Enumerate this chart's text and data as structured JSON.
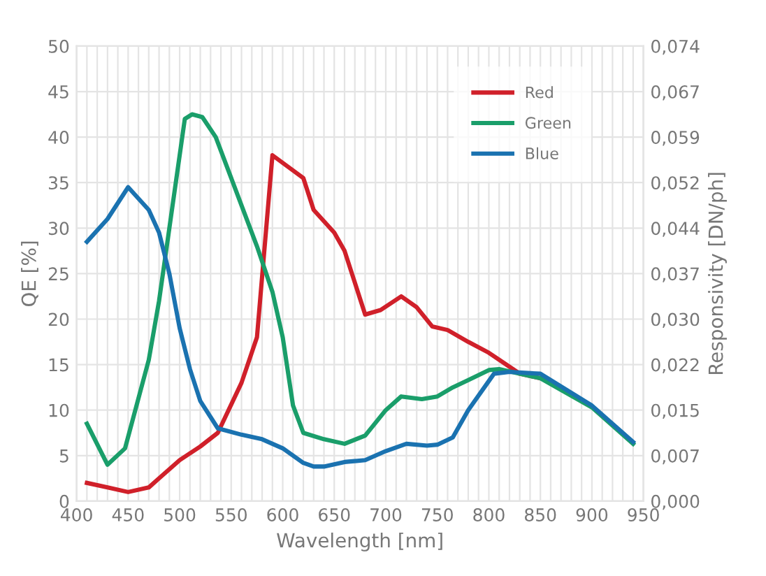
{
  "chart_data": {
    "type": "line",
    "xlabel": "Wavelength [nm]",
    "ylabel": "QE [%]",
    "y2label": "Responsivity [DN/ph]",
    "xlim": [
      400,
      950
    ],
    "xticks": [
      400,
      {
        "value": 410,
        "label": null
      },
      {
        "value": 420,
        "label": null
      },
      {
        "value": 430,
        "label": null
      },
      {
        "value": 440,
        "label": null
      },
      450,
      {
        "value": 460,
        "label": null
      },
      {
        "value": 470,
        "label": null
      },
      {
        "value": 480,
        "label": null
      },
      {
        "value": 490,
        "label": null
      },
      500,
      {
        "value": 510,
        "label": null
      },
      {
        "value": 520,
        "label": null
      },
      {
        "value": 530,
        "label": null
      },
      {
        "value": 540,
        "label": null
      },
      550,
      {
        "value": 560,
        "label": null
      },
      {
        "value": 570,
        "label": null
      },
      {
        "value": 580,
        "label": null
      },
      {
        "value": 590,
        "label": null
      },
      600,
      {
        "value": 610,
        "label": null
      },
      {
        "value": 620,
        "label": null
      },
      {
        "value": 630,
        "label": null
      },
      {
        "value": 640,
        "label": null
      },
      650,
      {
        "value": 660,
        "label": null
      },
      {
        "value": 670,
        "label": null
      },
      {
        "value": 680,
        "label": null
      },
      {
        "value": 690,
        "label": null
      },
      700,
      {
        "value": 710,
        "label": null
      },
      {
        "value": 720,
        "label": null
      },
      {
        "value": 730,
        "label": null
      },
      {
        "value": 740,
        "label": null
      },
      750,
      {
        "value": 760,
        "label": null
      },
      {
        "value": 770,
        "label": null
      },
      {
        "value": 780,
        "label": null
      },
      {
        "value": 790,
        "label": null
      },
      800,
      {
        "value": 810,
        "label": null
      },
      {
        "value": 820,
        "label": null
      },
      {
        "value": 830,
        "label": null
      },
      {
        "value": 840,
        "label": null
      },
      850,
      {
        "value": 860,
        "label": null
      },
      {
        "value": 870,
        "label": null
      },
      {
        "value": 880,
        "label": null
      },
      {
        "value": 890,
        "label": null
      },
      900,
      {
        "value": 910,
        "label": null
      },
      {
        "value": 920,
        "label": null
      },
      {
        "value": 930,
        "label": null
      },
      {
        "value": 940,
        "label": null
      },
      950
    ],
    "ylim": [
      0,
      50
    ],
    "yticks": [
      0,
      5,
      10,
      15,
      20,
      25,
      30,
      35,
      40,
      45,
      50
    ],
    "y2lim": [
      0,
      0.074
    ],
    "y2ticks": [
      {
        "value": 0,
        "label": "0,000"
      },
      {
        "value": 0.0074,
        "label": "0,007"
      },
      {
        "value": 0.0148,
        "label": "0,015"
      },
      {
        "value": 0.0222,
        "label": "0,022"
      },
      {
        "value": 0.0296,
        "label": "0,030"
      },
      {
        "value": 0.037,
        "label": "0,037"
      },
      {
        "value": 0.0444,
        "label": "0,044"
      },
      {
        "value": 0.0518,
        "label": "0,052"
      },
      {
        "value": 0.0592,
        "label": "0,059"
      },
      {
        "value": 0.0666,
        "label": "0,067"
      },
      {
        "value": 0.074,
        "label": "0,074"
      }
    ],
    "grid": true,
    "legend": "top right",
    "marker": "none",
    "line_style": "solid",
    "series": [
      {
        "name": "Red",
        "color": "#d0202a",
        "x": [
          410,
          430,
          450,
          470,
          480,
          500,
          520,
          537,
          560,
          575,
          590,
          620,
          630,
          650,
          660,
          680,
          695,
          715,
          730,
          745,
          760,
          780,
          800,
          830,
          850
        ],
        "values": [
          2,
          1.5,
          1,
          1.5,
          2.5,
          4.5,
          6,
          7.5,
          13,
          18,
          38,
          35.5,
          32,
          29.5,
          27.5,
          20.5,
          21,
          22.5,
          21.3,
          19.2,
          18.8,
          17.5,
          16.3,
          14,
          13.5
        ]
      },
      {
        "name": "Green",
        "color": "#1a9e6a",
        "x": [
          410,
          430,
          447,
          470,
          480,
          490,
          500,
          505,
          512,
          522,
          535,
          550,
          575,
          590,
          600,
          610,
          620,
          640,
          660,
          680,
          700,
          715,
          735,
          750,
          765,
          780,
          800,
          810,
          850,
          900,
          940
        ],
        "values": [
          8.5,
          4,
          5.8,
          15.5,
          22,
          30,
          38,
          42,
          42.5,
          42.2,
          40,
          35.5,
          28,
          23,
          18,
          10.5,
          7.5,
          6.8,
          6.3,
          7.2,
          10,
          11.5,
          11.2,
          11.5,
          12.5,
          13.3,
          14.4,
          14.5,
          13.5,
          10.3,
          6.3
        ]
      },
      {
        "name": "Blue",
        "color": "#1a72b0",
        "x": [
          410,
          430,
          450,
          470,
          480,
          490,
          500,
          510,
          520,
          537,
          560,
          580,
          600,
          620,
          630,
          640,
          660,
          680,
          700,
          720,
          740,
          750,
          765,
          780,
          805,
          820,
          850,
          900,
          940
        ],
        "values": [
          28.5,
          31,
          34.5,
          32,
          29.5,
          25,
          19,
          14.5,
          11,
          8,
          7.3,
          6.8,
          5.8,
          4.2,
          3.8,
          3.8,
          4.3,
          4.5,
          5.5,
          6.3,
          6.1,
          6.2,
          7,
          10,
          14,
          14.2,
          14,
          10.5,
          6.5
        ]
      }
    ]
  }
}
